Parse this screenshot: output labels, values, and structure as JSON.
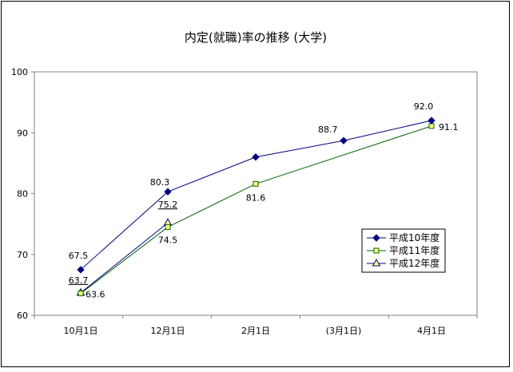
{
  "chart_data": {
    "type": "line",
    "title": "内定(就職)率の推移 (大学)",
    "categories": [
      "10月1日",
      "12月1日",
      "2月1日",
      "(3月1日)",
      "4月1日"
    ],
    "ylim": [
      60,
      100
    ],
    "yticks": [
      60,
      70,
      80,
      90,
      100
    ],
    "grid": false,
    "legend_position": "right",
    "series": [
      {
        "name": "平成10年度",
        "color": "#000080",
        "marker": "diamond",
        "values": [
          67.5,
          80.3,
          86.0,
          88.7,
          92.0
        ],
        "labels": [
          "67.5",
          "80.3",
          "",
          "88.7",
          "92.0"
        ]
      },
      {
        "name": "平成11年度",
        "color": "#006000",
        "marker": "square",
        "values": [
          63.6,
          74.5,
          81.6,
          null,
          91.1
        ],
        "labels": [
          "63.6",
          "74.5",
          "81.6",
          "",
          "91.1"
        ]
      },
      {
        "name": "平成12年度",
        "color": "#000080",
        "marker": "triangle",
        "values": [
          63.7,
          75.2,
          null,
          null,
          null
        ],
        "labels": [
          "63.7",
          "75.2",
          "",
          "",
          ""
        ]
      }
    ]
  }
}
